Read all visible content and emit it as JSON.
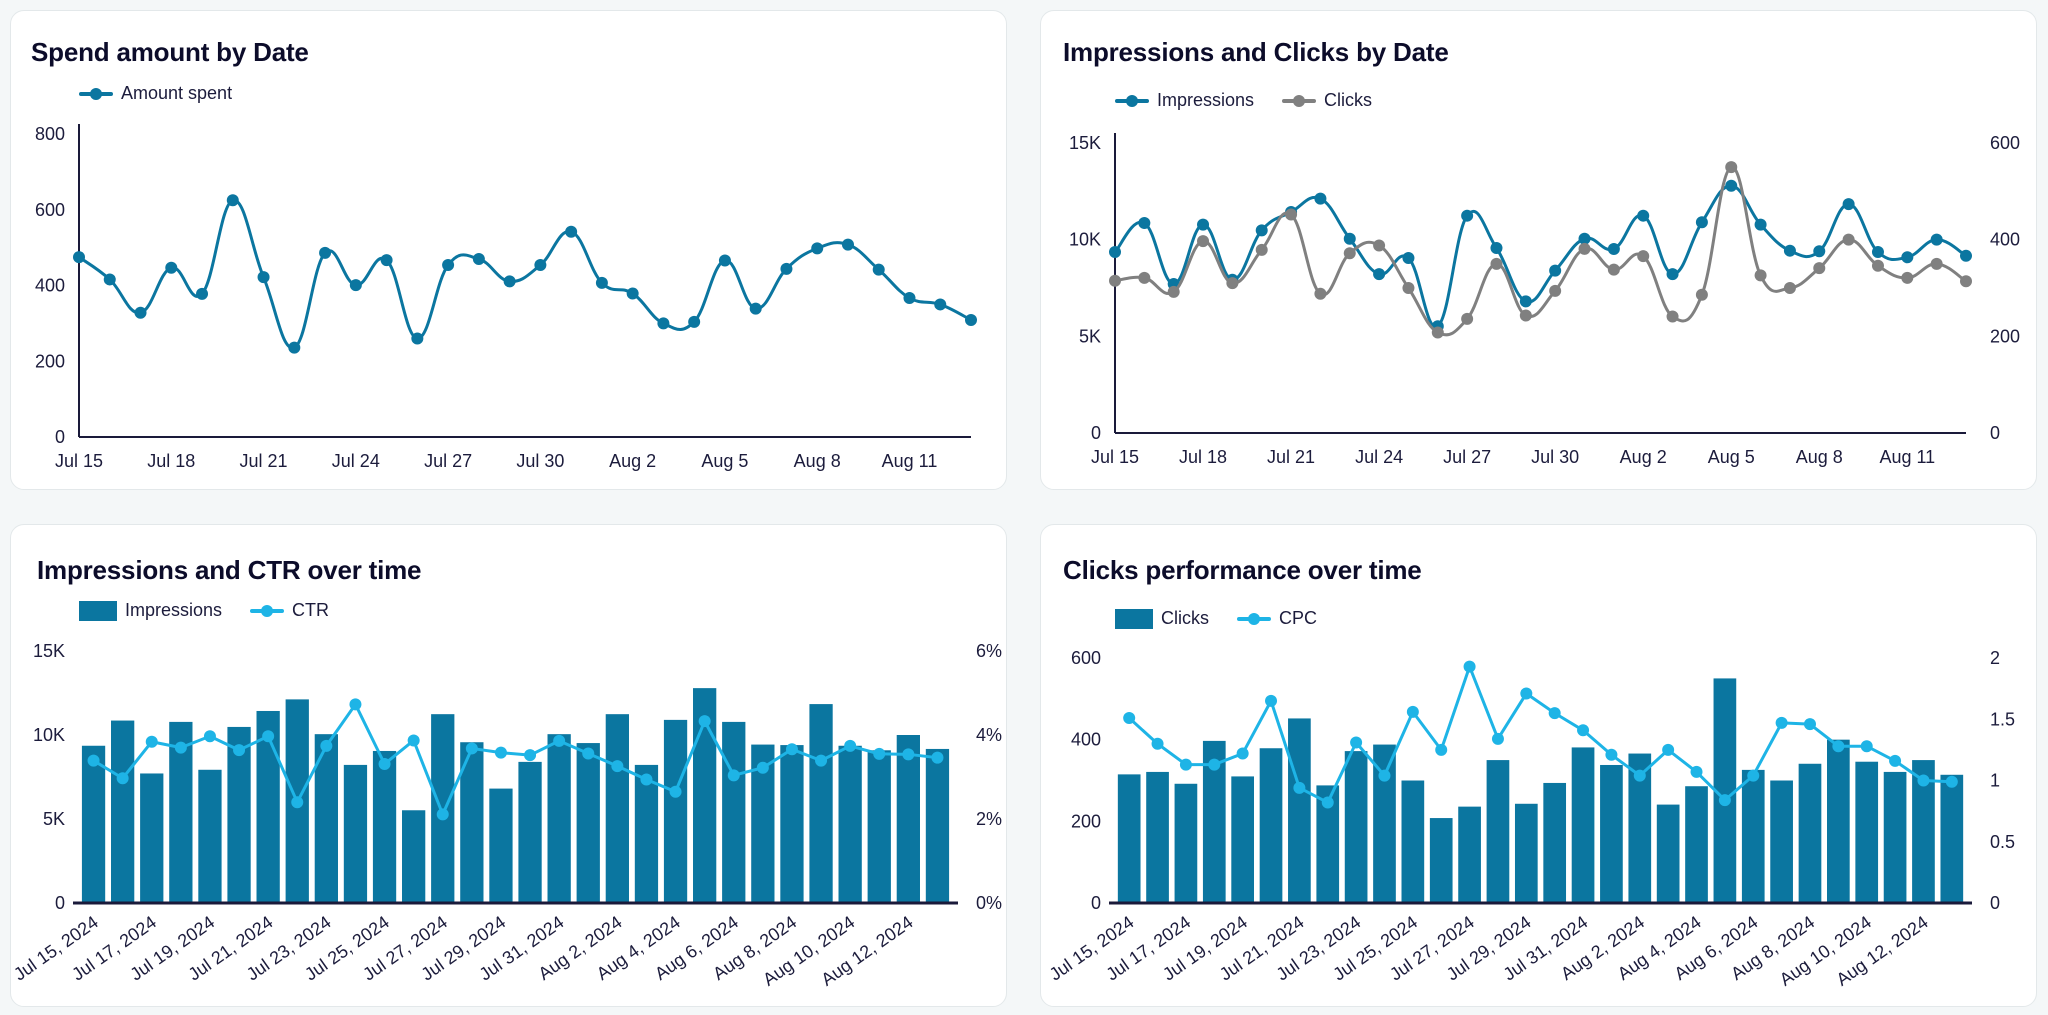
{
  "colors": {
    "primary": "#0b76a0",
    "secondary": "#808080",
    "accent": "#1eb4e6",
    "axis": "#1a1a3a",
    "background": "#f4f7f8"
  },
  "chart_data": [
    {
      "id": "spend",
      "type": "line",
      "title": "Spend amount by Date",
      "x": [
        "Jul 15",
        "Jul 16",
        "Jul 17",
        "Jul 18",
        "Jul 19",
        "Jul 20",
        "Jul 21",
        "Jul 22",
        "Jul 23",
        "Jul 24",
        "Jul 25",
        "Jul 26",
        "Jul 27",
        "Jul 28",
        "Jul 29",
        "Jul 30",
        "Jul 31",
        "Aug 1",
        "Aug 2",
        "Aug 3",
        "Aug 4",
        "Aug 5",
        "Aug 6",
        "Aug 7",
        "Aug 8",
        "Aug 9",
        "Aug 10",
        "Aug 11",
        "Aug 12",
        "Aug 13"
      ],
      "x_tick_labels": [
        "Jul 15",
        "Jul 18",
        "Jul 21",
        "Jul 24",
        "Jul 27",
        "Jul 30",
        "Aug 2",
        "Aug 5",
        "Aug 8",
        "Aug 11"
      ],
      "y_ticks": [
        "0",
        "200",
        "400",
        "600",
        "800"
      ],
      "ylim": [
        0,
        800
      ],
      "legend_position": "top-left",
      "grid": false,
      "series": [
        {
          "name": "Amount spent",
          "color": "#0b76a0",
          "smooth": true,
          "axis": "left",
          "values": [
            475,
            416,
            328,
            447,
            378,
            625,
            422,
            236,
            486,
            401,
            467,
            260,
            454,
            470,
            411,
            454,
            542,
            407,
            379,
            300,
            304,
            466,
            339,
            444,
            498,
            508,
            442,
            367,
            350,
            309
          ]
        }
      ]
    },
    {
      "id": "impclicks",
      "type": "line",
      "title": "Impressions and Clicks by Date",
      "x": [
        "Jul 15",
        "Jul 16",
        "Jul 17",
        "Jul 18",
        "Jul 19",
        "Jul 20",
        "Jul 21",
        "Jul 22",
        "Jul 23",
        "Jul 24",
        "Jul 25",
        "Jul 26",
        "Jul 27",
        "Jul 28",
        "Jul 29",
        "Jul 30",
        "Jul 31",
        "Aug 1",
        "Aug 2",
        "Aug 3",
        "Aug 4",
        "Aug 5",
        "Aug 6",
        "Aug 7",
        "Aug 8",
        "Aug 9",
        "Aug 10",
        "Aug 11",
        "Aug 12",
        "Aug 13"
      ],
      "x_tick_labels": [
        "Jul 15",
        "Jul 18",
        "Jul 21",
        "Jul 24",
        "Jul 27",
        "Jul 30",
        "Aug 2",
        "Aug 5",
        "Aug 8",
        "Aug 11"
      ],
      "y_ticks": [
        "0",
        "5K",
        "10K",
        "15K"
      ],
      "ylim": [
        0,
        15000
      ],
      "y2_ticks": [
        "0",
        "200",
        "400",
        "600"
      ],
      "y2lim": [
        0,
        600
      ],
      "legend_position": "top-left",
      "grid": false,
      "series": [
        {
          "name": "Impressions",
          "color": "#0b76a0",
          "smooth": true,
          "axis": "left",
          "values": [
            9360,
            10860,
            7710,
            10780,
            7930,
            10480,
            11430,
            12120,
            10050,
            8220,
            9050,
            5520,
            11240,
            9570,
            6810,
            8400,
            10050,
            9520,
            11240,
            8220,
            10900,
            12790,
            10780,
            9430,
            9400,
            11840,
            9360,
            9090,
            10000,
            9170
          ]
        },
        {
          "name": "Clicks",
          "color": "#808080",
          "smooth": true,
          "axis": "right",
          "values": [
            315,
            321,
            292,
            397,
            310,
            379,
            452,
            288,
            372,
            388,
            300,
            208,
            236,
            350,
            243,
            294,
            381,
            338,
            366,
            241,
            286,
            550,
            326,
            300,
            341,
            400,
            346,
            321,
            350,
            314
          ]
        }
      ]
    },
    {
      "id": "impctr",
      "type": "bar",
      "title": "Impressions and CTR over time",
      "x": [
        "Jul 15, 2024",
        "Jul 16, 2024",
        "Jul 17, 2024",
        "Jul 18, 2024",
        "Jul 19, 2024",
        "Jul 20, 2024",
        "Jul 21, 2024",
        "Jul 22, 2024",
        "Jul 23, 2024",
        "Jul 24, 2024",
        "Jul 25, 2024",
        "Jul 26, 2024",
        "Jul 27, 2024",
        "Jul 28, 2024",
        "Jul 29, 2024",
        "Jul 30, 2024",
        "Jul 31, 2024",
        "Aug 1, 2024",
        "Aug 2, 2024",
        "Aug 3, 2024",
        "Aug 4, 2024",
        "Aug 5, 2024",
        "Aug 6, 2024",
        "Aug 7, 2024",
        "Aug 8, 2024",
        "Aug 9, 2024",
        "Aug 10, 2024",
        "Aug 11, 2024",
        "Aug 12, 2024",
        "Aug 13, 2024"
      ],
      "x_tick_labels": [
        "Jul 15, 2024",
        "Jul 17, 2024",
        "Jul 19, 2024",
        "Jul 21, 2024",
        "Jul 23, 2024",
        "Jul 25, 2024",
        "Jul 27, 2024",
        "Jul 29, 2024",
        "Jul 31, 2024",
        "Aug 2, 2024",
        "Aug 4, 2024",
        "Aug 6, 2024",
        "Aug 8, 2024",
        "Aug 10, 2024",
        "Aug 12, 2024"
      ],
      "y_ticks": [
        "0",
        "5K",
        "10K",
        "15K"
      ],
      "ylim": [
        0,
        15000
      ],
      "y2_ticks": [
        "0%",
        "2%",
        "4%",
        "6%"
      ],
      "y2lim": [
        0,
        6
      ],
      "legend_position": "top-left",
      "grid": false,
      "series": [
        {
          "name": "Impressions",
          "kind": "bar",
          "color": "#0b76a0",
          "axis": "left",
          "values": [
            9360,
            10860,
            7710,
            10780,
            7930,
            10480,
            11430,
            12120,
            10050,
            8220,
            9050,
            5520,
            11240,
            9570,
            6810,
            8400,
            10050,
            9520,
            11240,
            8220,
            10900,
            12790,
            10780,
            9430,
            9400,
            11840,
            9360,
            9090,
            10000,
            9170
          ]
        },
        {
          "name": "CTR",
          "kind": "line",
          "color": "#1eb4e6",
          "axis": "right",
          "unit": "%",
          "values": [
            3.39,
            2.97,
            3.84,
            3.7,
            3.97,
            3.64,
            3.97,
            2.4,
            3.74,
            4.73,
            3.31,
            3.87,
            2.11,
            3.68,
            3.58,
            3.52,
            3.86,
            3.56,
            3.26,
            2.94,
            2.65,
            4.33,
            3.04,
            3.22,
            3.66,
            3.39,
            3.74,
            3.55,
            3.54,
            3.46
          ]
        }
      ]
    },
    {
      "id": "clickscpc",
      "type": "bar",
      "title": "Clicks performance over time",
      "x": [
        "Jul 15, 2024",
        "Jul 16, 2024",
        "Jul 17, 2024",
        "Jul 18, 2024",
        "Jul 19, 2024",
        "Jul 20, 2024",
        "Jul 21, 2024",
        "Jul 22, 2024",
        "Jul 23, 2024",
        "Jul 24, 2024",
        "Jul 25, 2024",
        "Jul 26, 2024",
        "Jul 27, 2024",
        "Jul 28, 2024",
        "Jul 29, 2024",
        "Jul 30, 2024",
        "Jul 31, 2024",
        "Aug 1, 2024",
        "Aug 2, 2024",
        "Aug 3, 2024",
        "Aug 4, 2024",
        "Aug 5, 2024",
        "Aug 6, 2024",
        "Aug 7, 2024",
        "Aug 8, 2024",
        "Aug 9, 2024",
        "Aug 10, 2024",
        "Aug 11, 2024",
        "Aug 12, 2024",
        "Aug 13, 2024"
      ],
      "x_tick_labels": [
        "Jul 15, 2024",
        "Jul 17, 2024",
        "Jul 19, 2024",
        "Jul 21, 2024",
        "Jul 23, 2024",
        "Jul 25, 2024",
        "Jul 27, 2024",
        "Jul 29, 2024",
        "Jul 31, 2024",
        "Aug 2, 2024",
        "Aug 4, 2024",
        "Aug 6, 2024",
        "Aug 8, 2024",
        "Aug 10, 2024",
        "Aug 12, 2024"
      ],
      "y_ticks": [
        "0",
        "200",
        "400",
        "600"
      ],
      "ylim": [
        0,
        600
      ],
      "y2_ticks": [
        "0",
        "0.5",
        "1",
        "1.5",
        "2"
      ],
      "y2lim": [
        0,
        2
      ],
      "legend_position": "top-left",
      "grid": false,
      "series": [
        {
          "name": "Clicks",
          "kind": "bar",
          "color": "#0b76a0",
          "axis": "left",
          "values": [
            315,
            321,
            292,
            397,
            310,
            379,
            452,
            288,
            372,
            388,
            300,
            208,
            236,
            350,
            243,
            294,
            381,
            338,
            366,
            241,
            286,
            550,
            326,
            300,
            341,
            400,
            346,
            321,
            350,
            314
          ]
        },
        {
          "name": "CPC",
          "kind": "line",
          "color": "#1eb4e6",
          "axis": "right",
          "values": [
            1.51,
            1.3,
            1.13,
            1.13,
            1.22,
            1.65,
            0.94,
            0.82,
            1.31,
            1.04,
            1.56,
            1.25,
            1.93,
            1.34,
            1.71,
            1.55,
            1.41,
            1.21,
            1.04,
            1.25,
            1.07,
            0.84,
            1.04,
            1.47,
            1.46,
            1.28,
            1.28,
            1.16,
            1.0,
            0.99
          ]
        }
      ]
    }
  ]
}
